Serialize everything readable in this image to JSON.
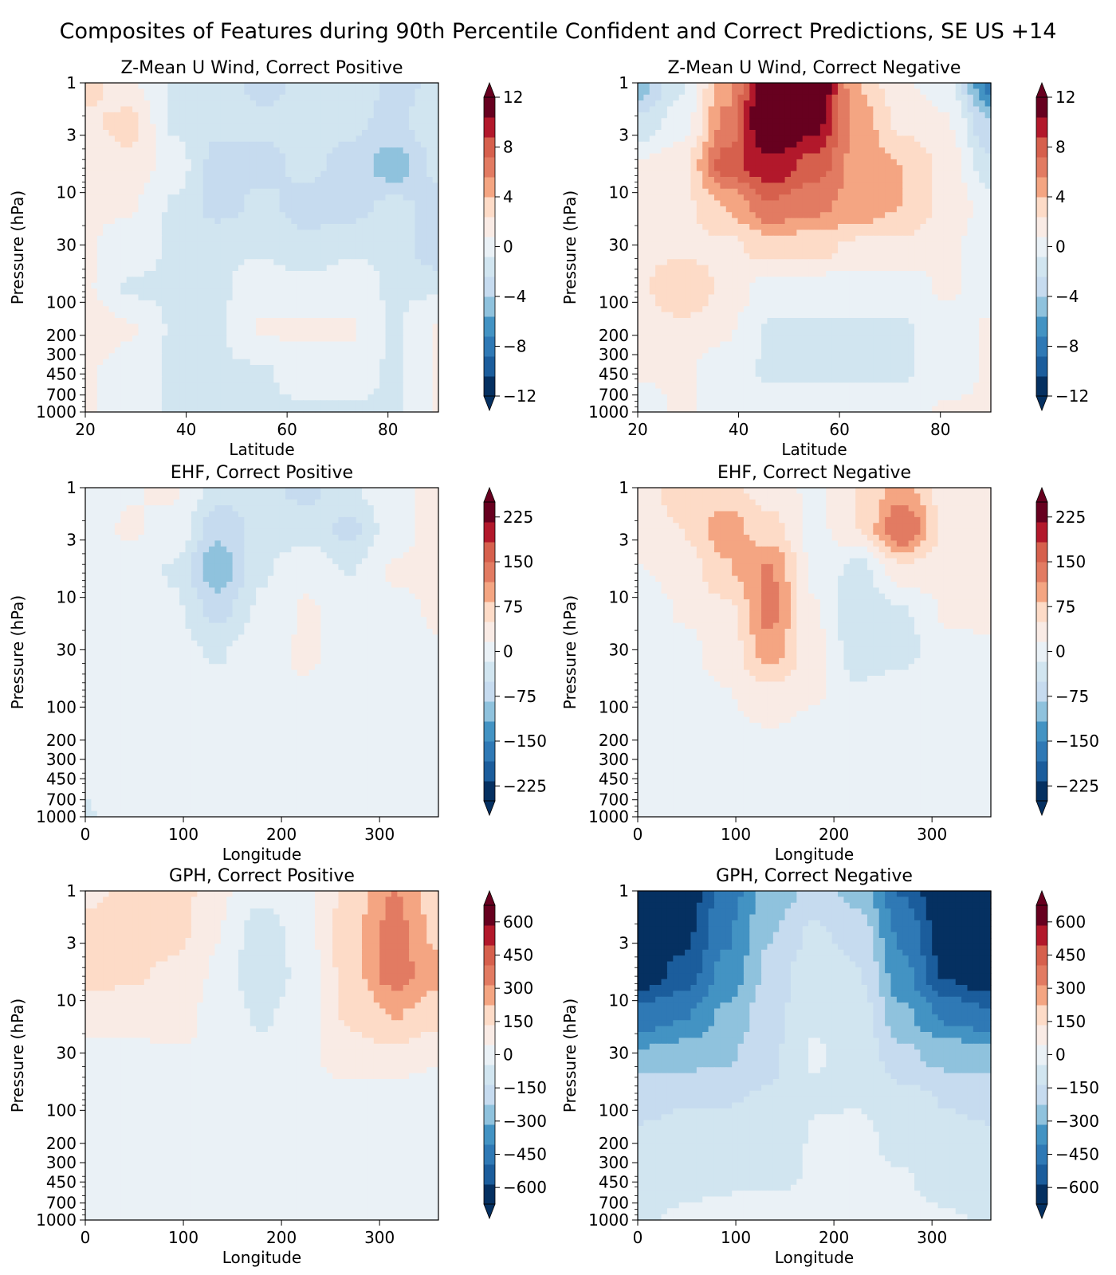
{
  "suptitle": "Composites of Features during 90th Percentile Confident and Correct Predictions, SE US +14",
  "colors": {
    "cmap": [
      "#053061",
      "#1b5d9c",
      "#2f79b5",
      "#4393c3",
      "#8fc2dd",
      "#c6dbef",
      "#d1e5f0",
      "#eaf1f6",
      "#f9ebe5",
      "#fddbc7",
      "#f4a582",
      "#e27b62",
      "#d6604d",
      "#b2182b",
      "#67001f"
    ],
    "cmap_levels_u": [
      -12,
      -10,
      -8,
      -6,
      -4,
      -2,
      0,
      2,
      4,
      6,
      8,
      10,
      12
    ]
  },
  "chart_data": [
    {
      "type": "heatmap",
      "title": "Z-Mean U Wind, Correct Positive",
      "xlabel": "Latitude",
      "ylabel": "Pressure (hPa)",
      "xlim": [
        20,
        90
      ],
      "xticks": [
        "20",
        "40",
        "60",
        "80"
      ],
      "ylim": [
        1000,
        1
      ],
      "yscale": "log",
      "yticks": [
        "1",
        "3",
        "10",
        "30",
        "100",
        "200",
        "300",
        "450",
        "700",
        "1000"
      ],
      "colorbar": {
        "min": -12,
        "max": 12,
        "ticks": [
          "12",
          "8",
          "4",
          "0",
          "−4",
          "−8",
          "−12"
        ]
      },
      "field": [
        [
          3,
          1,
          -1,
          -1,
          -3,
          -2,
          -1,
          -3,
          -2
        ],
        [
          2,
          3,
          -1,
          -2,
          -2,
          -2,
          -2,
          -3,
          -1
        ],
        [
          1,
          2,
          0,
          -3,
          -3,
          -2,
          -3,
          -5,
          -2
        ],
        [
          1,
          1,
          -1,
          -3,
          -2,
          -3,
          -3,
          -2,
          -3
        ],
        [
          1,
          0,
          -1,
          -1,
          -1,
          -2,
          -1,
          -1,
          -4
        ],
        [
          1,
          -1,
          -1,
          -1,
          0,
          0,
          0,
          -1,
          -1
        ],
        [
          2,
          1,
          -1,
          -1,
          1,
          1,
          1,
          -1,
          1
        ],
        [
          1,
          0,
          -1,
          -1,
          -1,
          0,
          0,
          -1,
          1
        ],
        [
          1,
          0,
          -1,
          -1,
          -1,
          -1,
          -1,
          -1,
          1
        ]
      ]
    },
    {
      "type": "heatmap",
      "title": "Z-Mean U Wind, Correct Negative",
      "xlabel": "Latitude",
      "ylabel": "Pressure (hPa)",
      "xlim": [
        20,
        90
      ],
      "xticks": [
        "20",
        "40",
        "60",
        "80"
      ],
      "ylim": [
        1000,
        1
      ],
      "yscale": "log",
      "yticks": [
        "1",
        "3",
        "10",
        "30",
        "100",
        "200",
        "300",
        "450",
        "700",
        "1000"
      ],
      "colorbar": {
        "min": -12,
        "max": 12,
        "ticks": [
          "12",
          "8",
          "4",
          "0",
          "−4",
          "−8",
          "−12"
        ]
      },
      "field": [
        [
          -5,
          -1,
          5,
          13,
          13,
          4,
          1,
          0,
          -8
        ],
        [
          -2,
          0,
          6,
          13,
          11,
          5,
          2,
          1,
          -4
        ],
        [
          1,
          2,
          8,
          10,
          8,
          5,
          4,
          2,
          -2
        ],
        [
          1,
          2,
          4,
          7,
          6,
          5,
          4,
          2,
          0
        ],
        [
          2,
          2,
          2,
          3,
          3,
          2,
          2,
          1,
          0
        ],
        [
          2,
          4,
          2,
          0,
          0,
          0,
          0,
          1,
          0
        ],
        [
          1,
          2,
          1,
          -1,
          -1,
          -1,
          -1,
          0,
          1
        ],
        [
          1,
          1,
          0,
          -1,
          -1,
          -1,
          -1,
          0,
          1
        ],
        [
          0,
          1,
          0,
          0,
          0,
          0,
          0,
          1,
          1
        ]
      ]
    },
    {
      "type": "heatmap",
      "title": "EHF, Correct Positive",
      "xlabel": "Longitude",
      "ylabel": "Pressure (hPa)",
      "xlim": [
        0,
        360
      ],
      "xticks": [
        "0",
        "100",
        "200",
        "300"
      ],
      "ylim": [
        1000,
        1
      ],
      "yscale": "log",
      "yticks": [
        "1",
        "3",
        "10",
        "30",
        "100",
        "200",
        "300",
        "450",
        "700",
        "1000"
      ],
      "colorbar": {
        "min": -250,
        "max": 250,
        "ticks": [
          "225",
          "150",
          "75",
          "0",
          "−75",
          "−150",
          "−225"
        ]
      },
      "field": [
        [
          -10,
          15,
          20,
          -30,
          -40,
          -60,
          -20,
          10,
          25
        ],
        [
          5,
          20,
          10,
          -75,
          -40,
          -30,
          -60,
          5,
          30
        ],
        [
          10,
          5,
          -20,
          -110,
          -20,
          10,
          -20,
          20,
          20
        ],
        [
          5,
          -10,
          -10,
          -60,
          -10,
          20,
          10,
          10,
          20
        ],
        [
          5,
          -10,
          -5,
          -20,
          10,
          20,
          5,
          -5,
          15
        ],
        [
          -10,
          -5,
          10,
          -5,
          5,
          15,
          -5,
          -10,
          10
        ],
        [
          -5,
          -10,
          10,
          -5,
          5,
          5,
          -5,
          10,
          5
        ],
        [
          -10,
          5,
          5,
          -5,
          5,
          -5,
          5,
          10,
          -5
        ],
        [
          -20,
          10,
          -5,
          5,
          -5,
          5,
          -5,
          -5,
          5
        ]
      ]
    },
    {
      "type": "heatmap",
      "title": "EHF, Correct Negative",
      "xlabel": "Longitude",
      "ylabel": "Pressure (hPa)",
      "xlim": [
        0,
        360
      ],
      "xticks": [
        "0",
        "100",
        "200",
        "300"
      ],
      "ylim": [
        1000,
        1
      ],
      "yscale": "log",
      "yticks": [
        "1",
        "3",
        "10",
        "30",
        "100",
        "200",
        "300",
        "450",
        "700",
        "1000"
      ],
      "colorbar": {
        "min": -250,
        "max": 250,
        "ticks": [
          "225",
          "150",
          "75",
          "0",
          "−75",
          "−150",
          "−225"
        ]
      },
      "field": [
        [
          25,
          70,
          60,
          35,
          10,
          50,
          100,
          30,
          40
        ],
        [
          35,
          50,
          100,
          60,
          5,
          50,
          150,
          40,
          20
        ],
        [
          15,
          30,
          80,
          120,
          10,
          -30,
          40,
          30,
          25
        ],
        [
          -10,
          20,
          40,
          130,
          20,
          -50,
          -20,
          20,
          20
        ],
        [
          -5,
          5,
          30,
          100,
          30,
          -40,
          -30,
          10,
          15
        ],
        [
          -5,
          10,
          15,
          40,
          20,
          -10,
          10,
          10,
          10
        ],
        [
          -5,
          5,
          5,
          15,
          5,
          5,
          5,
          10,
          5
        ],
        [
          5,
          -5,
          5,
          5,
          5,
          5,
          -5,
          5,
          5
        ],
        [
          -10,
          5,
          -5,
          5,
          5,
          -5,
          5,
          5,
          5
        ]
      ]
    },
    {
      "type": "heatmap",
      "title": "GPH, Correct Positive",
      "xlabel": "Longitude",
      "ylabel": "Pressure (hPa)",
      "xlim": [
        0,
        360
      ],
      "xticks": [
        "0",
        "100",
        "200",
        "300"
      ],
      "ylim": [
        1000,
        1
      ],
      "yscale": "log",
      "yticks": [
        "1",
        "3",
        "10",
        "30",
        "100",
        "200",
        "300",
        "450",
        "700",
        "1000"
      ],
      "colorbar": {
        "min": -675,
        "max": 675,
        "ticks": [
          "600",
          "450",
          "300",
          "150",
          "0",
          "−150",
          "−300",
          "−450",
          "−600"
        ]
      },
      "field": [
        [
          120,
          150,
          200,
          60,
          -20,
          30,
          150,
          320,
          150
        ],
        [
          150,
          160,
          170,
          50,
          -100,
          20,
          200,
          350,
          200
        ],
        [
          170,
          150,
          120,
          30,
          -130,
          0,
          180,
          360,
          250
        ],
        [
          100,
          80,
          80,
          20,
          -60,
          20,
          150,
          230,
          180
        ],
        [
          20,
          20,
          40,
          40,
          -20,
          30,
          100,
          120,
          60
        ],
        [
          -20,
          0,
          10,
          30,
          30,
          20,
          20,
          -10,
          -30
        ],
        [
          -30,
          -20,
          0,
          10,
          20,
          10,
          -20,
          -30,
          -40
        ],
        [
          -20,
          -20,
          0,
          10,
          10,
          0,
          -30,
          -30,
          -20
        ],
        [
          -10,
          -20,
          -20,
          0,
          10,
          0,
          -10,
          10,
          -20
        ]
      ]
    },
    {
      "type": "heatmap",
      "title": "GPH, Correct Negative",
      "xlabel": "Longitude",
      "ylabel": "Pressure (hPa)",
      "xlim": [
        0,
        360
      ],
      "xticks": [
        "0",
        "100",
        "200",
        "300"
      ],
      "ylim": [
        1000,
        1
      ],
      "yscale": "log",
      "yticks": [
        "1",
        "3",
        "10",
        "30",
        "100",
        "200",
        "300",
        "450",
        "700",
        "1000"
      ],
      "colorbar": {
        "min": -675,
        "max": 675,
        "ticks": [
          "600",
          "450",
          "300",
          "150",
          "0",
          "−150",
          "−300",
          "−450",
          "−600"
        ]
      },
      "field": [
        [
          -750,
          -680,
          -450,
          -280,
          -200,
          -250,
          -500,
          -700,
          -750
        ],
        [
          -720,
          -620,
          -420,
          -230,
          -120,
          -180,
          -430,
          -650,
          -730
        ],
        [
          -650,
          -560,
          -380,
          -200,
          -70,
          -130,
          -380,
          -600,
          -680
        ],
        [
          -470,
          -420,
          -300,
          -170,
          -50,
          -90,
          -300,
          -430,
          -480
        ],
        [
          -300,
          -270,
          -240,
          -150,
          -40,
          -70,
          -200,
          -260,
          -280
        ],
        [
          -150,
          -140,
          -140,
          -130,
          -50,
          -50,
          -110,
          -140,
          -150
        ],
        [
          -130,
          -120,
          -100,
          -90,
          -40,
          -30,
          -70,
          -120,
          -130
        ],
        [
          -100,
          -80,
          -60,
          -60,
          -40,
          -30,
          -40,
          -70,
          -90
        ],
        [
          -60,
          -30,
          -10,
          10,
          -10,
          -20,
          -20,
          -40,
          -50
        ]
      ]
    }
  ]
}
